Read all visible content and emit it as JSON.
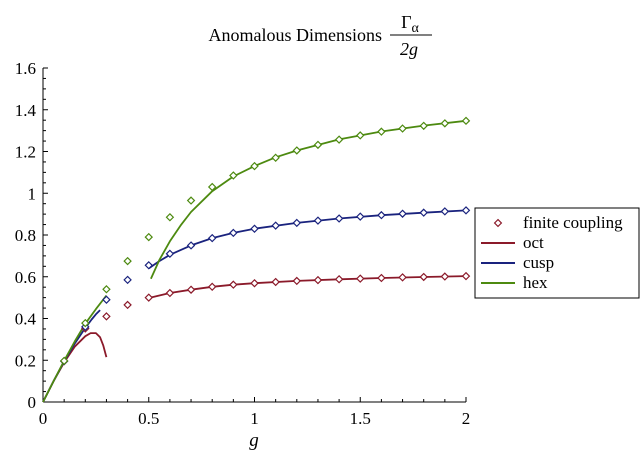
{
  "chart_data": {
    "type": "line",
    "title": "Anomalous Dimensions",
    "title_fraction": {
      "numerator": "Γ",
      "numerator_sub": "α",
      "denominator": "2g"
    },
    "xlabel": "g",
    "ylabel": "",
    "xlim": [
      0,
      2
    ],
    "ylim": [
      0,
      1.6
    ],
    "x_ticks": [
      0,
      0.5,
      1,
      1.5,
      2
    ],
    "x_tick_labels": [
      "0",
      "0.5",
      "1",
      "1.5",
      "2"
    ],
    "y_ticks": [
      0,
      0.2,
      0.4,
      0.6,
      0.8,
      1.0,
      1.2,
      1.4,
      1.6
    ],
    "y_tick_labels": [
      "0",
      "0.2",
      "0.4",
      "0.6",
      "0.8",
      "1",
      "1.2",
      "1.4",
      "1.6"
    ],
    "grid": false,
    "legend_position": "right",
    "legend": [
      {
        "label": "finite coupling",
        "kind": "marker",
        "color": "#8b1a2a"
      },
      {
        "label": "oct",
        "kind": "line",
        "color": "#8b1a2a"
      },
      {
        "label": "cusp",
        "kind": "line",
        "color": "#1a237e"
      },
      {
        "label": "hex",
        "kind": "line",
        "color": "#4d8a10"
      }
    ],
    "scatter_series": [
      {
        "color": "#8b1a2a",
        "x": [
          0.1,
          0.2,
          0.3,
          0.4,
          0.5,
          0.6,
          0.7,
          0.8,
          0.9,
          1.0,
          1.1,
          1.2,
          1.3,
          1.4,
          1.5,
          1.6,
          1.7,
          1.8,
          1.9,
          2.0
        ],
        "y": [
          0.196,
          0.352,
          0.41,
          0.465,
          0.5,
          0.522,
          0.538,
          0.552,
          0.562,
          0.569,
          0.575,
          0.58,
          0.584,
          0.588,
          0.591,
          0.594,
          0.597,
          0.599,
          0.601,
          0.603
        ]
      },
      {
        "color": "#1a237e",
        "x": [
          0.1,
          0.2,
          0.3,
          0.4,
          0.5,
          0.6,
          0.7,
          0.8,
          0.9,
          1.0,
          1.1,
          1.2,
          1.3,
          1.4,
          1.5,
          1.6,
          1.7,
          1.8,
          1.9,
          2.0
        ],
        "y": [
          0.196,
          0.36,
          0.49,
          0.585,
          0.655,
          0.71,
          0.75,
          0.785,
          0.81,
          0.83,
          0.845,
          0.858,
          0.869,
          0.879,
          0.888,
          0.895,
          0.902,
          0.907,
          0.913,
          0.918
        ]
      },
      {
        "color": "#4d8a10",
        "x": [
          0.1,
          0.2,
          0.3,
          0.4,
          0.5,
          0.6,
          0.7,
          0.8,
          0.9,
          1.0,
          1.1,
          1.2,
          1.3,
          1.4,
          1.5,
          1.6,
          1.7,
          1.8,
          1.9,
          2.0
        ],
        "y": [
          0.197,
          0.378,
          0.54,
          0.675,
          0.79,
          0.885,
          0.965,
          1.03,
          1.085,
          1.13,
          1.17,
          1.205,
          1.232,
          1.257,
          1.277,
          1.295,
          1.31,
          1.323,
          1.335,
          1.347
        ]
      }
    ],
    "line_series": [
      {
        "name": "oct",
        "color": "#8b1a2a",
        "x": [
          0,
          0.05,
          0.1,
          0.15,
          0.2,
          0.225,
          0.25,
          0.27,
          0.285,
          0.3
        ],
        "y": [
          0,
          0.1,
          0.19,
          0.265,
          0.315,
          0.33,
          0.33,
          0.31,
          0.27,
          0.215
        ]
      },
      {
        "name": "oct",
        "color": "#8b1a2a",
        "x": [
          0.5,
          0.6,
          0.7,
          0.8,
          0.9,
          1.0,
          1.2,
          1.4,
          1.6,
          1.8,
          2.0
        ],
        "y": [
          0.498,
          0.522,
          0.538,
          0.552,
          0.562,
          0.569,
          0.58,
          0.588,
          0.594,
          0.599,
          0.603
        ]
      },
      {
        "name": "cusp",
        "color": "#1a237e",
        "x": [
          0,
          0.05,
          0.1,
          0.15,
          0.2,
          0.23,
          0.25,
          0.27
        ],
        "y": [
          0,
          0.1,
          0.195,
          0.28,
          0.355,
          0.395,
          0.42,
          0.44
        ]
      },
      {
        "name": "cusp",
        "color": "#1a237e",
        "x": [
          0.5,
          0.55,
          0.6,
          0.7,
          0.8,
          0.9,
          1.0,
          1.2,
          1.4,
          1.6,
          1.8,
          2.0
        ],
        "y": [
          0.64,
          0.675,
          0.705,
          0.75,
          0.785,
          0.81,
          0.83,
          0.858,
          0.879,
          0.895,
          0.907,
          0.918
        ]
      },
      {
        "name": "hex",
        "color": "#4d8a10",
        "x": [
          0,
          0.05,
          0.1,
          0.15,
          0.2,
          0.25,
          0.3
        ],
        "y": [
          0,
          0.1,
          0.198,
          0.29,
          0.375,
          0.445,
          0.51
        ]
      },
      {
        "name": "hex",
        "color": "#4d8a10",
        "x": [
          0.51,
          0.55,
          0.6,
          0.65,
          0.7,
          0.8,
          0.9,
          1.0,
          1.1,
          1.2,
          1.4,
          1.6,
          1.8,
          2.0
        ],
        "y": [
          0.59,
          0.68,
          0.77,
          0.845,
          0.91,
          1.01,
          1.08,
          1.13,
          1.172,
          1.205,
          1.258,
          1.296,
          1.324,
          1.347
        ]
      }
    ]
  }
}
